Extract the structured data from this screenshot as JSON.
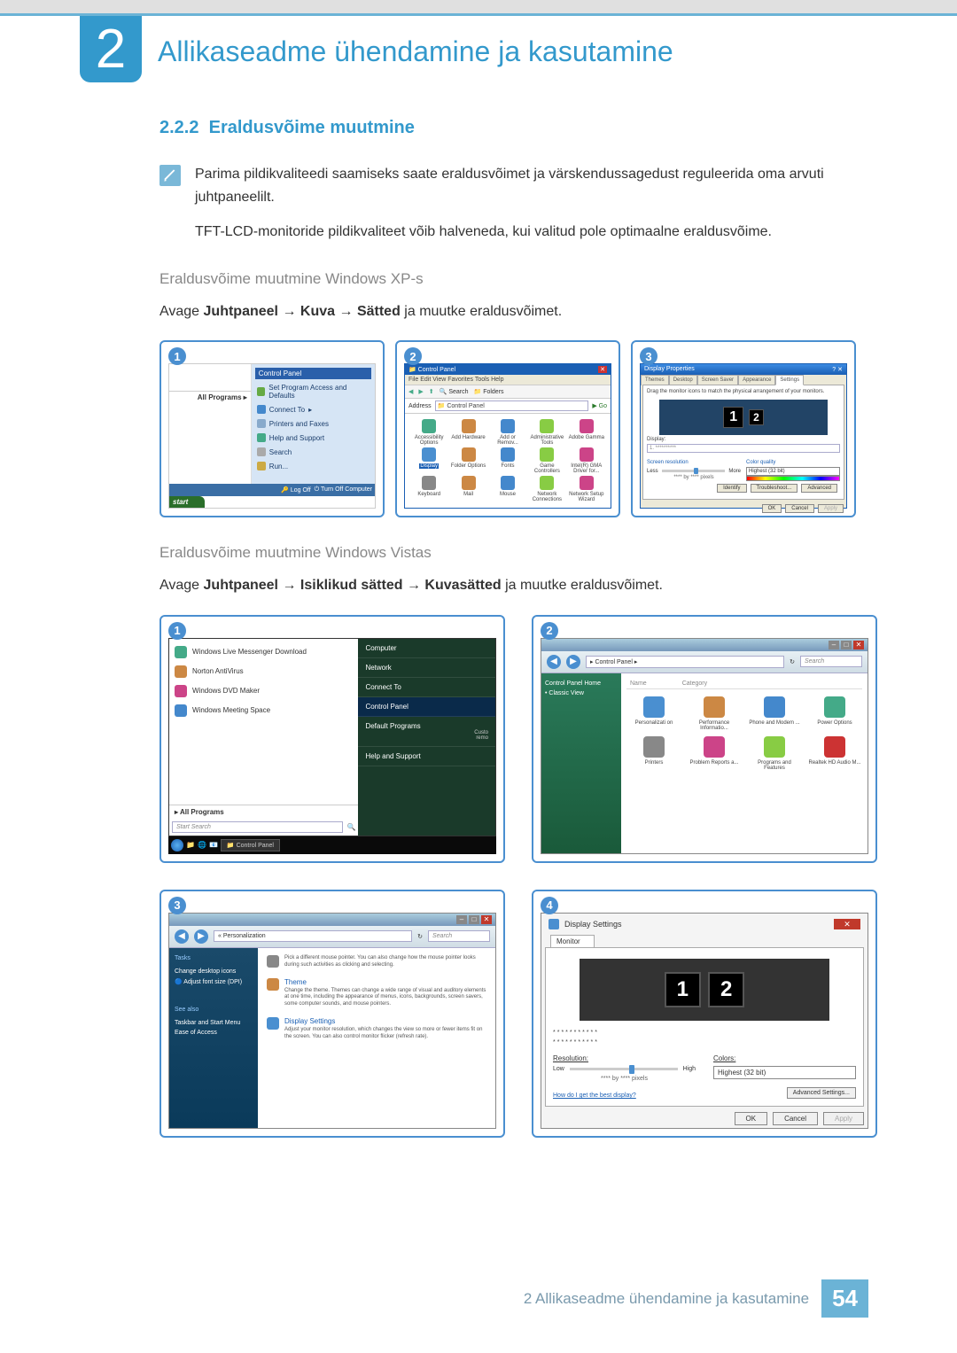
{
  "colors": {
    "accent": "#3399cc",
    "frame_border": "#4a8fd0",
    "muted": "#888888",
    "footer_bg": "#6bb3d6",
    "footer_text": "#7a9aad"
  },
  "header": {
    "chapter_number": "2",
    "chapter_title": "Allikaseadme ühendamine ja kasutamine"
  },
  "section": {
    "number": "2.2.2",
    "title": "Eraldusvõime muutmine"
  },
  "intro": {
    "paragraph1": "Parima pildikvaliteedi saamiseks saate eraldusvõimet ja värskendussagedust reguleerida oma arvuti juhtpaneelilt.",
    "paragraph2": "TFT-LCD-monitoride pildikvaliteet võib halveneda, kui valitud pole optimaalne eraldusvõime."
  },
  "xp": {
    "sub_heading": "Eraldusvõime muutmine Windows XP-s",
    "instruction_prefix": "Avage ",
    "path_parts": [
      "Juhtpaneel",
      "Kuva",
      "Sätted"
    ],
    "instruction_suffix": " ja muutke eraldusvõimet.",
    "arrow": "→",
    "start_menu": {
      "control_panel": "Control Panel",
      "items": [
        "Set Program Access and Defaults",
        "Connect To",
        "Printers and Faxes",
        "Help and Support",
        "Search",
        "Run..."
      ],
      "all_programs": "All Programs",
      "logoff": "Log Off",
      "turnoff": "Turn Off Computer",
      "start": "start"
    },
    "control_panel": {
      "title": "Control Panel",
      "menu": "File  Edit  View  Favorites  Tools  Help",
      "addr_label": "Address",
      "addr_value": "Control Panel",
      "go": "Go",
      "toolbar": {
        "search": "Search",
        "folders": "Folders"
      },
      "items": [
        "Accessibility Options",
        "Add Hardware",
        "Add or Remov...",
        "Administrative Tools",
        "Adobe Gamma",
        "Display",
        "Folder Options",
        "Fonts",
        "Game Controllers",
        "Intel(R) GMA Driver for...",
        "Keyboard",
        "Mail",
        "Mouse",
        "Network Connections",
        "Network Setup Wizard"
      ]
    },
    "display_props": {
      "title": "Display Properties",
      "tabs": [
        "Themes",
        "Desktop",
        "Screen Saver",
        "Appearance",
        "Settings"
      ],
      "desc": "Drag the monitor icons to match the physical arrangement of your monitors.",
      "monitor_1": "1",
      "monitor_2": "2",
      "display_label": "Display:",
      "res_label": "Screen resolution",
      "less": "Less",
      "more": "More",
      "by_pixels_note": "**** by **** pixels",
      "color_label": "Color quality",
      "color_value": "Highest (32 bit)",
      "buttons": [
        "Identify",
        "Troubleshoot...",
        "Advanced"
      ],
      "ok": "OK",
      "cancel": "Cancel",
      "apply": "Apply"
    }
  },
  "vista": {
    "sub_heading": "Eraldusvõime muutmine Windows Vistas",
    "instruction_prefix": "Avage ",
    "path_parts": [
      "Juhtpaneel",
      "Isiklikud sätted",
      "Kuvasätted"
    ],
    "instruction_suffix": " ja muutke eraldusvõimet.",
    "arrow": "→",
    "start_menu": {
      "left_items": [
        "Windows Live Messenger Download",
        "Norton AntiVirus",
        "Windows DVD Maker",
        "Windows Meeting Space"
      ],
      "all_programs": "All Programs",
      "search_placeholder": "Start Search",
      "right_items": [
        "Computer",
        "Network",
        "Connect To",
        "Control Panel",
        "Default Programs",
        "Help and Support"
      ],
      "custo": "Custo",
      "remo": "remo",
      "taskbar_label": "Control Panel"
    },
    "control_panel": {
      "crumb": "▸ Control Panel ▸",
      "search": "Search",
      "side_title": "Control Panel Home",
      "side_item": "Classic View",
      "col_name": "Name",
      "col_cat": "Category",
      "items": [
        "Personalizati on",
        "Performance Informatio...",
        "Phone and Modem ...",
        "Power Options",
        "Printers",
        "Problem Reports a...",
        "Programs and Features",
        "Realtek HD Audio M..."
      ]
    },
    "personalization": {
      "crumb": "« Personalization",
      "search": "Search",
      "side_tasks": "Tasks",
      "side_items": [
        "Change desktop icons",
        "Adjust font size (DPI)"
      ],
      "side_seealso": "See also",
      "side_items2": [
        "Taskbar and Start Menu",
        "Ease of Access"
      ],
      "items": [
        {
          "title": "",
          "desc": "Pick a different mouse pointer. You can also change how the mouse pointer looks during such activities as clicking and selecting."
        },
        {
          "title": "Theme",
          "desc": "Change the theme. Themes can change a wide range of visual and auditory elements at one time, including the appearance of menus, icons, backgrounds, screen savers, some computer sounds, and mouse pointers."
        },
        {
          "title": "Display Settings",
          "desc": "Adjust your monitor resolution, which changes the view so more or fewer items fit on the screen. You can also control monitor flicker (refresh rate)."
        }
      ]
    },
    "display_settings": {
      "title": "Display Settings",
      "tab": "Monitor",
      "monitor_1": "1",
      "monitor_2": "2",
      "dots1": "***********",
      "dots2": "***********",
      "res_label": "Resolution:",
      "low": "Low",
      "high": "High",
      "by_pixels": "**** by **** pixels",
      "colors_label": "Colors:",
      "colors_value": "Highest (32 bit)",
      "link": "How do I get the best display?",
      "advanced": "Advanced Settings...",
      "ok": "OK",
      "cancel": "Cancel",
      "apply": "Apply"
    }
  },
  "footer": {
    "text": "2 Allikaseadme ühendamine ja kasutamine",
    "page": "54"
  }
}
